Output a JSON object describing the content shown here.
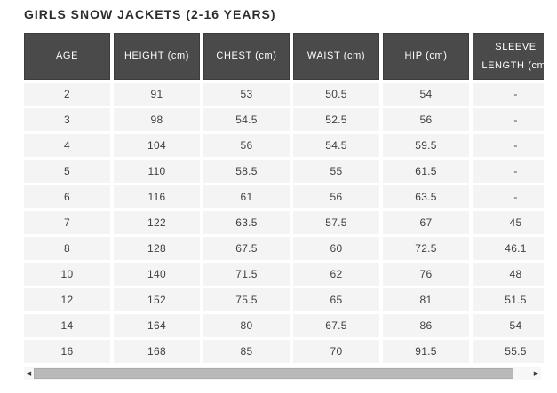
{
  "page": {
    "title": "GIRLS SNOW JACKETS (2-16 YEARS)"
  },
  "table": {
    "columns": [
      "AGE",
      "HEIGHT (cm)",
      "CHEST (cm)",
      "WAIST (cm)",
      "HIP (cm)",
      "SLEEVE LENGTH (cm)"
    ],
    "rows": [
      [
        "2",
        "91",
        "53",
        "50.5",
        "54",
        "-"
      ],
      [
        "3",
        "98",
        "54.5",
        "52.5",
        "56",
        "-"
      ],
      [
        "4",
        "104",
        "56",
        "54.5",
        "59.5",
        "-"
      ],
      [
        "5",
        "110",
        "58.5",
        "55",
        "61.5",
        "-"
      ],
      [
        "6",
        "116",
        "61",
        "56",
        "63.5",
        "-"
      ],
      [
        "7",
        "122",
        "63.5",
        "57.5",
        "67",
        "45"
      ],
      [
        "8",
        "128",
        "67.5",
        "60",
        "72.5",
        "46.1"
      ],
      [
        "10",
        "140",
        "71.5",
        "62",
        "76",
        "48"
      ],
      [
        "12",
        "152",
        "75.5",
        "65",
        "81",
        "51.5"
      ],
      [
        "14",
        "164",
        "80",
        "67.5",
        "86",
        "54"
      ],
      [
        "16",
        "168",
        "85",
        "70",
        "91.5",
        "55.5"
      ]
    ]
  },
  "scrollbar": {
    "left_arrow_icon": "◀",
    "right_arrow_icon": "▶"
  },
  "colors": {
    "title_text": "#2d2d2d",
    "header_bg": "#4a4a4a",
    "header_text": "#ffffff",
    "row_bg": "#f4f4f4",
    "body_text": "#3f3f3f",
    "scrollbar_track": "#f7f7f7",
    "scrollbar_thumb": "#b9b9b9",
    "scrollbar_arrow": "#3a3a3a"
  }
}
